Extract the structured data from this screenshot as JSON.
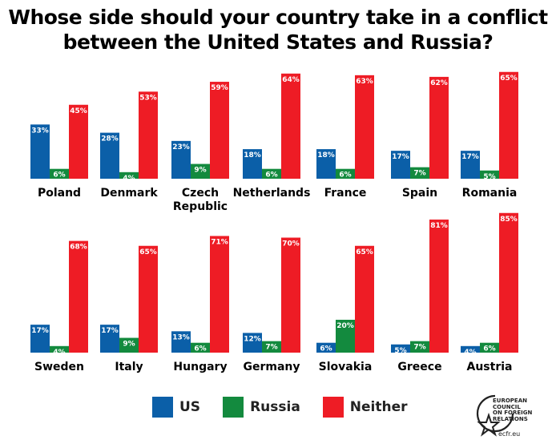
{
  "title_line1": "Whose side should your country take in a conflict",
  "title_line2": "between the United States and Russia?",
  "colors": {
    "us": "#0b5fa8",
    "russia": "#138a3e",
    "neither": "#ee1c25"
  },
  "chart_data": {
    "type": "bar",
    "title": "Whose side should your country take in a conflict between the United States and Russia?",
    "series_names": [
      "US",
      "Russia",
      "Neither"
    ],
    "ylim": [
      0,
      85
    ],
    "groups": [
      {
        "name": "Poland",
        "us": 33,
        "russia": 6,
        "neither": 45
      },
      {
        "name": "Denmark",
        "us": 28,
        "russia": 4,
        "neither": 53
      },
      {
        "name": "Czech Republic",
        "label_lines": [
          "Czech",
          "Republic"
        ],
        "us": 23,
        "russia": 9,
        "neither": 59
      },
      {
        "name": "Netherlands",
        "us": 18,
        "russia": 6,
        "neither": 64
      },
      {
        "name": "France",
        "us": 18,
        "russia": 6,
        "neither": 63
      },
      {
        "name": "Spain",
        "us": 17,
        "russia": 7,
        "neither": 62
      },
      {
        "name": "Romania",
        "us": 17,
        "russia": 5,
        "neither": 65
      },
      {
        "name": "Sweden",
        "us": 17,
        "russia": 4,
        "neither": 68
      },
      {
        "name": "Italy",
        "us": 17,
        "russia": 9,
        "neither": 65
      },
      {
        "name": "Hungary",
        "us": 13,
        "russia": 6,
        "neither": 71
      },
      {
        "name": "Germany",
        "us": 12,
        "russia": 7,
        "neither": 70
      },
      {
        "name": "Slovakia",
        "us": 6,
        "russia": 20,
        "neither": 65
      },
      {
        "name": "Greece",
        "us": 5,
        "russia": 7,
        "neither": 81
      },
      {
        "name": "Austria",
        "us": 4,
        "russia": 6,
        "neither": 85
      }
    ]
  },
  "legend": [
    {
      "label": "US",
      "key": "us"
    },
    {
      "label": "Russia",
      "key": "russia"
    },
    {
      "label": "Neither",
      "key": "neither"
    }
  ],
  "logo": {
    "icon": "star-circle-icon",
    "lines": [
      "EUROPEAN",
      "COUNCIL",
      "ON FOREIGN",
      "RELATIONS"
    ],
    "url": "ecfr.eu"
  }
}
